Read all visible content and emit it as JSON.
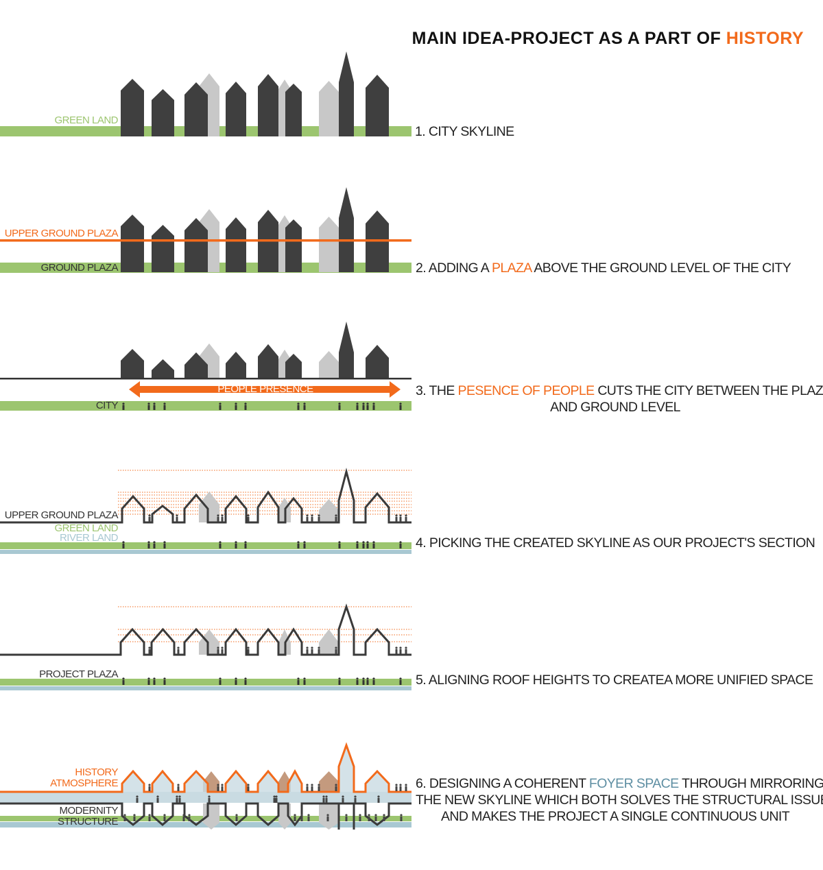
{
  "title": {
    "main": "MAIN IDEA-PROJECT AS A PART OF ",
    "highlight": "HISTORY"
  },
  "colors": {
    "orange": "#f26a1b",
    "green": "#9cc56f",
    "river": "#a8c8d2",
    "dark": "#3f3f3f",
    "light": "#c8c8c8",
    "foyer": "#c9dbe2",
    "brown": "#c49a7e"
  },
  "panels": [
    {
      "caption": [
        "1. CITY SKYLINE"
      ],
      "labels": {
        "green_land": "GREEN LAND"
      }
    },
    {
      "caption": [
        "2. ADDING A ",
        "PLAZA",
        " ABOVE THE GROUND LEVEL OF THE CITY"
      ],
      "labels": {
        "upper": "UPPER GROUND PLAZA",
        "ground": "GROUND PLAZA"
      }
    },
    {
      "caption": [
        "3. THE ",
        "PESENCE OF PEOPLE",
        " CUTS THE CITY BETWEEN THE PLAZA",
        "AND GROUND LEVEL"
      ],
      "labels": {
        "arrow": "PEOPLE PRESENCE",
        "city": "CITY"
      }
    },
    {
      "caption": [
        "4. PICKING THE CREATED SKYLINE AS OUR PROJECT'S SECTION"
      ],
      "labels": {
        "upper": "UPPER GROUND PLAZA",
        "green": "GREEN LAND",
        "river": "RIVER LAND"
      }
    },
    {
      "caption": [
        "5. ALIGNING ROOF HEIGHTS TO CREATEA MORE UNIFIED SPACE"
      ],
      "labels": {
        "plaza": "PROJECT PLAZA"
      }
    },
    {
      "caption": [
        "6. DESIGNING A COHERENT ",
        "FOYER SPACE",
        " THROUGH MIRRORING",
        "THE NEW SKYLINE WHICH BOTH SOLVES THE STRUCTURAL ISSUE",
        "AND MAKES THE PROJECT A SINGLE CONTINUOUS UNIT"
      ],
      "labels": {
        "history1": "HISTORY",
        "history2": "ATMOSPHERE",
        "modern1": "MODERNITY",
        "modern2": "STRUCTURE"
      }
    }
  ]
}
